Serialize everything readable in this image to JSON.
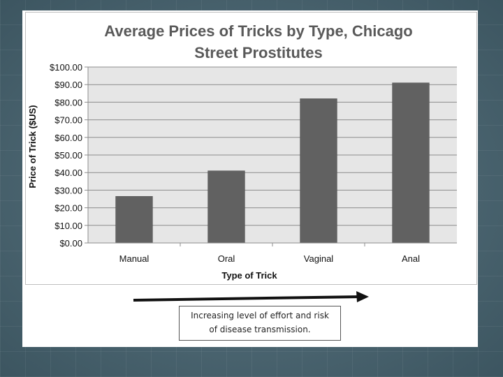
{
  "slide": {
    "note_line1": "Increasing level of effort and risk",
    "note_line2": "of disease transmission."
  },
  "colors": {
    "plot_bg": "#e6e6e6",
    "bar": "#616161",
    "grid": "#8c8c8c",
    "arrow": "#111111"
  },
  "chart_data": {
    "type": "bar",
    "title_line1": "Average Prices of Tricks by Type, Chicago",
    "title_line2": "Street Prostitutes",
    "xlabel": "Type of Trick",
    "ylabel": "Price of Trick ($US)",
    "categories": [
      "Manual",
      "Oral",
      "Vaginal",
      "Anal"
    ],
    "values": [
      26.5,
      41,
      82,
      91
    ],
    "ylim": [
      0,
      100
    ],
    "ytick_labels": [
      "$0.00",
      "$10.00",
      "$20.00",
      "$30.00",
      "$40.00",
      "$50.00",
      "$60.00",
      "$70.00",
      "$80.00",
      "$90.00",
      "$100.00"
    ],
    "grid": true,
    "legend": "none"
  }
}
